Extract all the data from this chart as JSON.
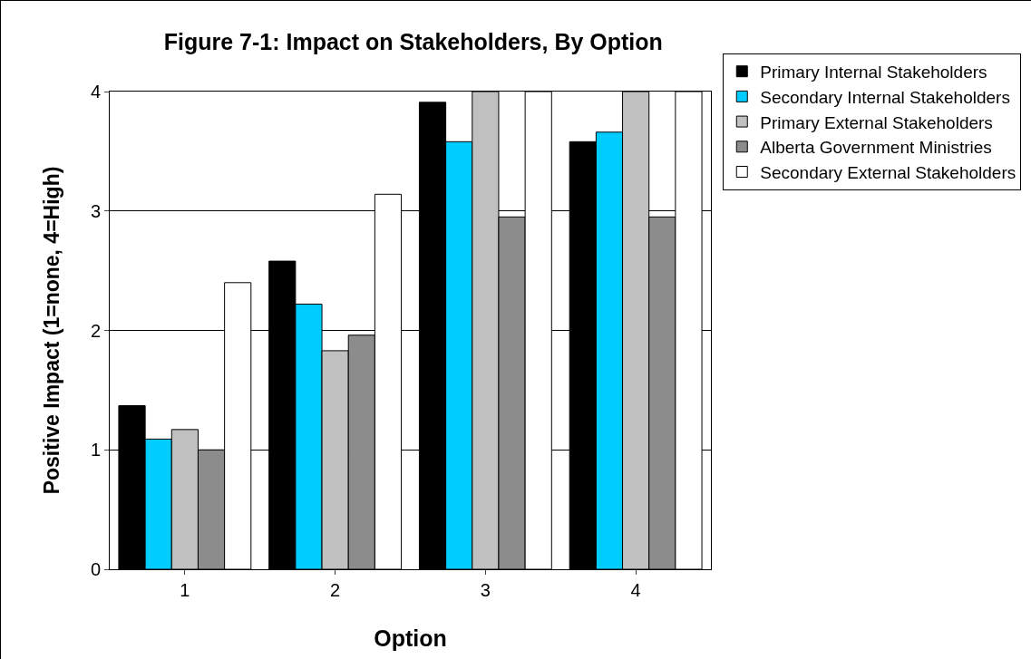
{
  "chart_data": {
    "type": "bar",
    "title": "Figure 7-1: Impact on Stakeholders, By Option",
    "xlabel": "Option",
    "ylabel": "Positive Impact (1=none, 4=High)",
    "categories": [
      "1",
      "2",
      "3",
      "4"
    ],
    "series": [
      {
        "name": "Primary Internal Stakeholders",
        "color": "#000000",
        "values": [
          1.37,
          2.58,
          3.91,
          3.58
        ]
      },
      {
        "name": "Secondary Internal Stakeholders",
        "color": "#00ccff",
        "values": [
          1.09,
          2.22,
          3.58,
          3.66
        ]
      },
      {
        "name": "Primary External Stakeholders",
        "color": "#c0c0c0",
        "values": [
          1.17,
          1.83,
          4,
          4
        ]
      },
      {
        "name": "Alberta Government Ministries",
        "color": "#8c8c8c",
        "values": [
          1.0,
          1.96,
          2.95,
          2.95
        ]
      },
      {
        "name": "Secondary External Stakeholders",
        "color": "#ffffff",
        "values": [
          2.4,
          3.14,
          4,
          4
        ]
      }
    ],
    "ylim": [
      0,
      4
    ],
    "yticks": [
      0,
      1,
      2,
      3,
      4
    ],
    "grid": "y",
    "legend": "right"
  }
}
